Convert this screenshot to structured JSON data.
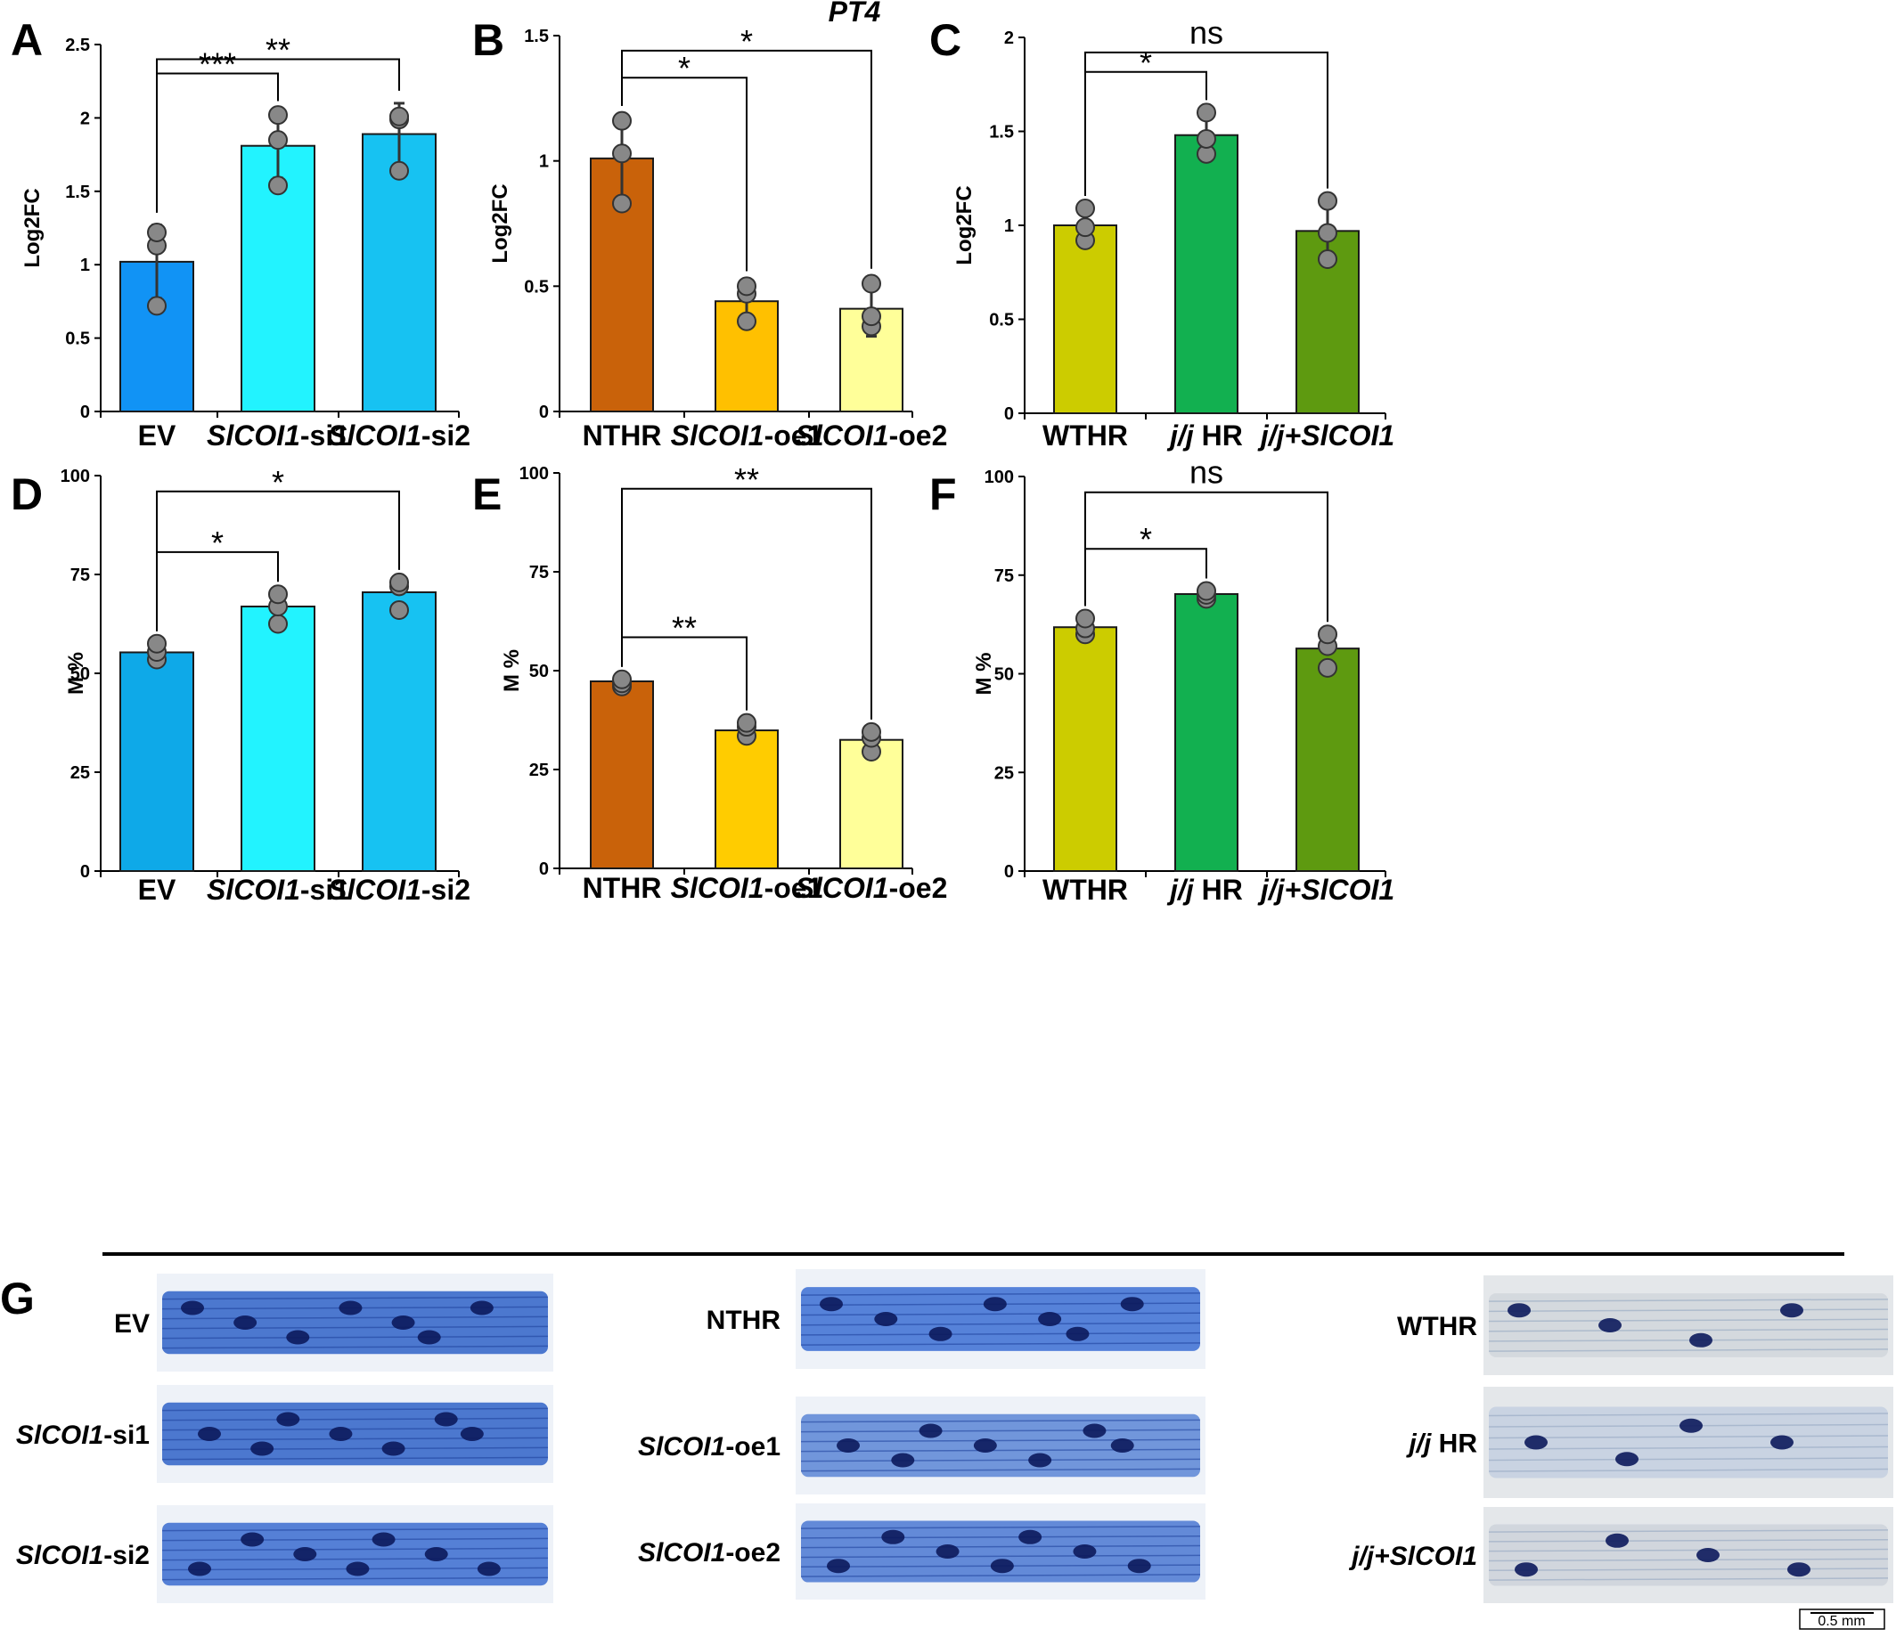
{
  "figure": {
    "gene_title": "PT4",
    "panel_g_label": "G",
    "scale_bar_label": "0.5 mm"
  },
  "chart_data": [
    {
      "panel": "A",
      "type": "bar",
      "ylabel": "Log2FC",
      "ylim": [
        0,
        2.5
      ],
      "yticks": [
        "0",
        "0.5",
        "1",
        "1.5",
        "2",
        "2.5"
      ],
      "categories": [
        {
          "parts": [
            {
              "t": "EV",
              "i": false
            }
          ]
        },
        {
          "parts": [
            {
              "t": "SlCOI1",
              "i": true
            },
            {
              "t": "-si1",
              "i": false
            }
          ]
        },
        {
          "parts": [
            {
              "t": "SlCOI1",
              "i": true
            },
            {
              "t": "-si2",
              "i": false
            }
          ]
        }
      ],
      "values": [
        1.02,
        1.81,
        1.89
      ],
      "errors": [
        0.25,
        0.22,
        0.21
      ],
      "points": [
        [
          0.72,
          1.13,
          1.22
        ],
        [
          1.54,
          1.85,
          2.02
        ],
        [
          1.64,
          1.99,
          2.01
        ]
      ],
      "colors": [
        "#1193f5",
        "#22f3ff",
        "#17c2f2"
      ],
      "comparisons": [
        {
          "from": 0,
          "to": 1,
          "label": "***"
        },
        {
          "from": 0,
          "to": 2,
          "label": "**"
        }
      ]
    },
    {
      "panel": "B",
      "type": "bar",
      "ylabel": "Log2FC",
      "ylim": [
        0,
        1.5
      ],
      "yticks": [
        "0",
        "0.5",
        "1",
        "1.5"
      ],
      "categories": [
        {
          "parts": [
            {
              "t": "NTHR",
              "i": false
            }
          ]
        },
        {
          "parts": [
            {
              "t": "SlCOI1",
              "i": true
            },
            {
              "t": "-oe1",
              "i": false
            }
          ]
        },
        {
          "parts": [
            {
              "t": "SlCOI1",
              "i": true
            },
            {
              "t": "-oe2",
              "i": false
            }
          ]
        }
      ],
      "values": [
        1.01,
        0.44,
        0.41
      ],
      "errors": [
        0.16,
        0.07,
        0.11
      ],
      "points": [
        [
          0.83,
          1.03,
          1.16
        ],
        [
          0.36,
          0.47,
          0.5
        ],
        [
          0.34,
          0.38,
          0.51
        ]
      ],
      "colors": [
        "#c9620a",
        "#ffc000",
        "#ffff99"
      ],
      "comparisons": [
        {
          "from": 0,
          "to": 1,
          "label": "*"
        },
        {
          "from": 0,
          "to": 2,
          "label": "*"
        }
      ]
    },
    {
      "panel": "C",
      "type": "bar",
      "ylabel": "Log2FC",
      "ylim": [
        0,
        2
      ],
      "yticks": [
        "0",
        "0.5",
        "1",
        "1.5",
        "2"
      ],
      "categories": [
        {
          "parts": [
            {
              "t": "WTHR",
              "i": false
            }
          ]
        },
        {
          "parts": [
            {
              "t": "j/j",
              "i": true
            },
            {
              "t": " HR",
              "i": false
            }
          ]
        },
        {
          "parts": [
            {
              "t": "j/j+SlCOI1",
              "i": true
            }
          ]
        }
      ],
      "values": [
        1.0,
        1.48,
        0.97
      ],
      "errors": [
        0.09,
        0.12,
        0.16
      ],
      "points": [
        [
          0.92,
          0.99,
          1.09
        ],
        [
          1.38,
          1.46,
          1.6
        ],
        [
          0.82,
          0.96,
          1.13
        ]
      ],
      "colors": [
        "#cccc00",
        "#12b050",
        "#5e9a10"
      ],
      "comparisons": [
        {
          "from": 0,
          "to": 1,
          "label": "*"
        },
        {
          "from": 0,
          "to": 2,
          "label": "ns"
        }
      ]
    },
    {
      "panel": "D",
      "type": "bar",
      "ylabel": "M %",
      "ylim": [
        0,
        100
      ],
      "yticks": [
        "0",
        "25",
        "50",
        "75",
        "100"
      ],
      "categories": [
        {
          "parts": [
            {
              "t": "EV",
              "i": false
            }
          ]
        },
        {
          "parts": [
            {
              "t": "SlCOI1",
              "i": true
            },
            {
              "t": "-si1",
              "i": false
            }
          ]
        },
        {
          "parts": [
            {
              "t": "SlCOI1",
              "i": true
            },
            {
              "t": "-si2",
              "i": false
            }
          ]
        }
      ],
      "values": [
        55.3,
        66.9,
        70.5
      ],
      "errors": [
        0,
        0,
        0
      ],
      "points": [
        [
          53.5,
          55.4,
          57.5
        ],
        [
          62.5,
          66.9,
          70.0
        ],
        [
          66.0,
          72.0,
          73.0
        ]
      ],
      "colors": [
        "#0ea9e8",
        "#22f3ff",
        "#17c2f2"
      ],
      "comparisons": [
        {
          "from": 0,
          "to": 1,
          "label": "*"
        },
        {
          "from": 0,
          "to": 2,
          "label": "*"
        }
      ]
    },
    {
      "panel": "E",
      "type": "bar",
      "ylabel": "M %",
      "ylim": [
        0,
        100
      ],
      "yticks": [
        "0",
        "25",
        "50",
        "75",
        "100"
      ],
      "categories": [
        {
          "parts": [
            {
              "t": "NTHR",
              "i": false
            }
          ]
        },
        {
          "parts": [
            {
              "t": "SlCOI1",
              "i": true
            },
            {
              "t": "-oe1",
              "i": false
            }
          ]
        },
        {
          "parts": [
            {
              "t": "SlCOI1",
              "i": true
            },
            {
              "t": "-oe2",
              "i": false
            }
          ]
        }
      ],
      "values": [
        47.3,
        34.9,
        32.5
      ],
      "errors": [
        0,
        0,
        0
      ],
      "points": [
        [
          46.0,
          46.8,
          47.8
        ],
        [
          33.5,
          35.8,
          36.8
        ],
        [
          29.5,
          33.0,
          34.5
        ]
      ],
      "colors": [
        "#c9620a",
        "#ffcc00",
        "#ffff99"
      ],
      "comparisons": [
        {
          "from": 0,
          "to": 1,
          "label": "**"
        },
        {
          "from": 0,
          "to": 2,
          "label": "**"
        }
      ]
    },
    {
      "panel": "F",
      "type": "bar",
      "ylabel": "M %",
      "ylim": [
        0,
        100
      ],
      "yticks": [
        "0",
        "25",
        "50",
        "75",
        "100"
      ],
      "categories": [
        {
          "parts": [
            {
              "t": "WTHR",
              "i": false
            }
          ]
        },
        {
          "parts": [
            {
              "t": "j/j",
              "i": true
            },
            {
              "t": " HR",
              "i": false
            }
          ]
        },
        {
          "parts": [
            {
              "t": "j/j+SlCOI1",
              "i": true
            }
          ]
        }
      ],
      "values": [
        61.8,
        70.2,
        56.4
      ],
      "errors": [
        0,
        0,
        0
      ],
      "points": [
        [
          60.0,
          61.5,
          64.0
        ],
        [
          69.0,
          70.0,
          71.0
        ],
        [
          51.5,
          57.0,
          60.0
        ]
      ],
      "colors": [
        "#cccc00",
        "#12b050",
        "#5e9a10"
      ],
      "comparisons": [
        {
          "from": 0,
          "to": 1,
          "label": "*"
        },
        {
          "from": 0,
          "to": 2,
          "label": "ns"
        }
      ]
    }
  ],
  "micrographs": {
    "columns": [
      {
        "labels": [
          {
            "parts": [
              {
                "t": "EV",
                "i": false
              }
            ]
          },
          {
            "parts": [
              {
                "t": "SlCOI1",
                "i": true
              },
              {
                "t": "-si1",
                "i": false
              }
            ]
          },
          {
            "parts": [
              {
                "t": "SlCOI1",
                "i": true
              },
              {
                "t": "-si2",
                "i": false
              }
            ]
          }
        ]
      },
      {
        "labels": [
          {
            "parts": [
              {
                "t": "NTHR",
                "i": false
              }
            ]
          },
          {
            "parts": [
              {
                "t": "SlCOI1",
                "i": true
              },
              {
                "t": "-oe1",
                "i": false
              }
            ]
          },
          {
            "parts": [
              {
                "t": "SlCOI1",
                "i": true
              },
              {
                "t": "-oe2",
                "i": false
              }
            ]
          }
        ]
      },
      {
        "labels": [
          {
            "parts": [
              {
                "t": "WTHR",
                "i": false
              }
            ]
          },
          {
            "parts": [
              {
                "t": "j/j",
                "i": true
              },
              {
                "t": " HR",
                "i": false
              }
            ]
          },
          {
            "parts": [
              {
                "t": "j/j+SlCOI1",
                "i": true
              }
            ]
          }
        ]
      }
    ],
    "tints": [
      "#2f63c8",
      "#2f63c8",
      "#3a6cd0",
      "#3b6fd4",
      "#5b86d6",
      "#4a78d2",
      "#c9d0d6",
      "#b8c7dc",
      "#c4ccd4"
    ]
  }
}
